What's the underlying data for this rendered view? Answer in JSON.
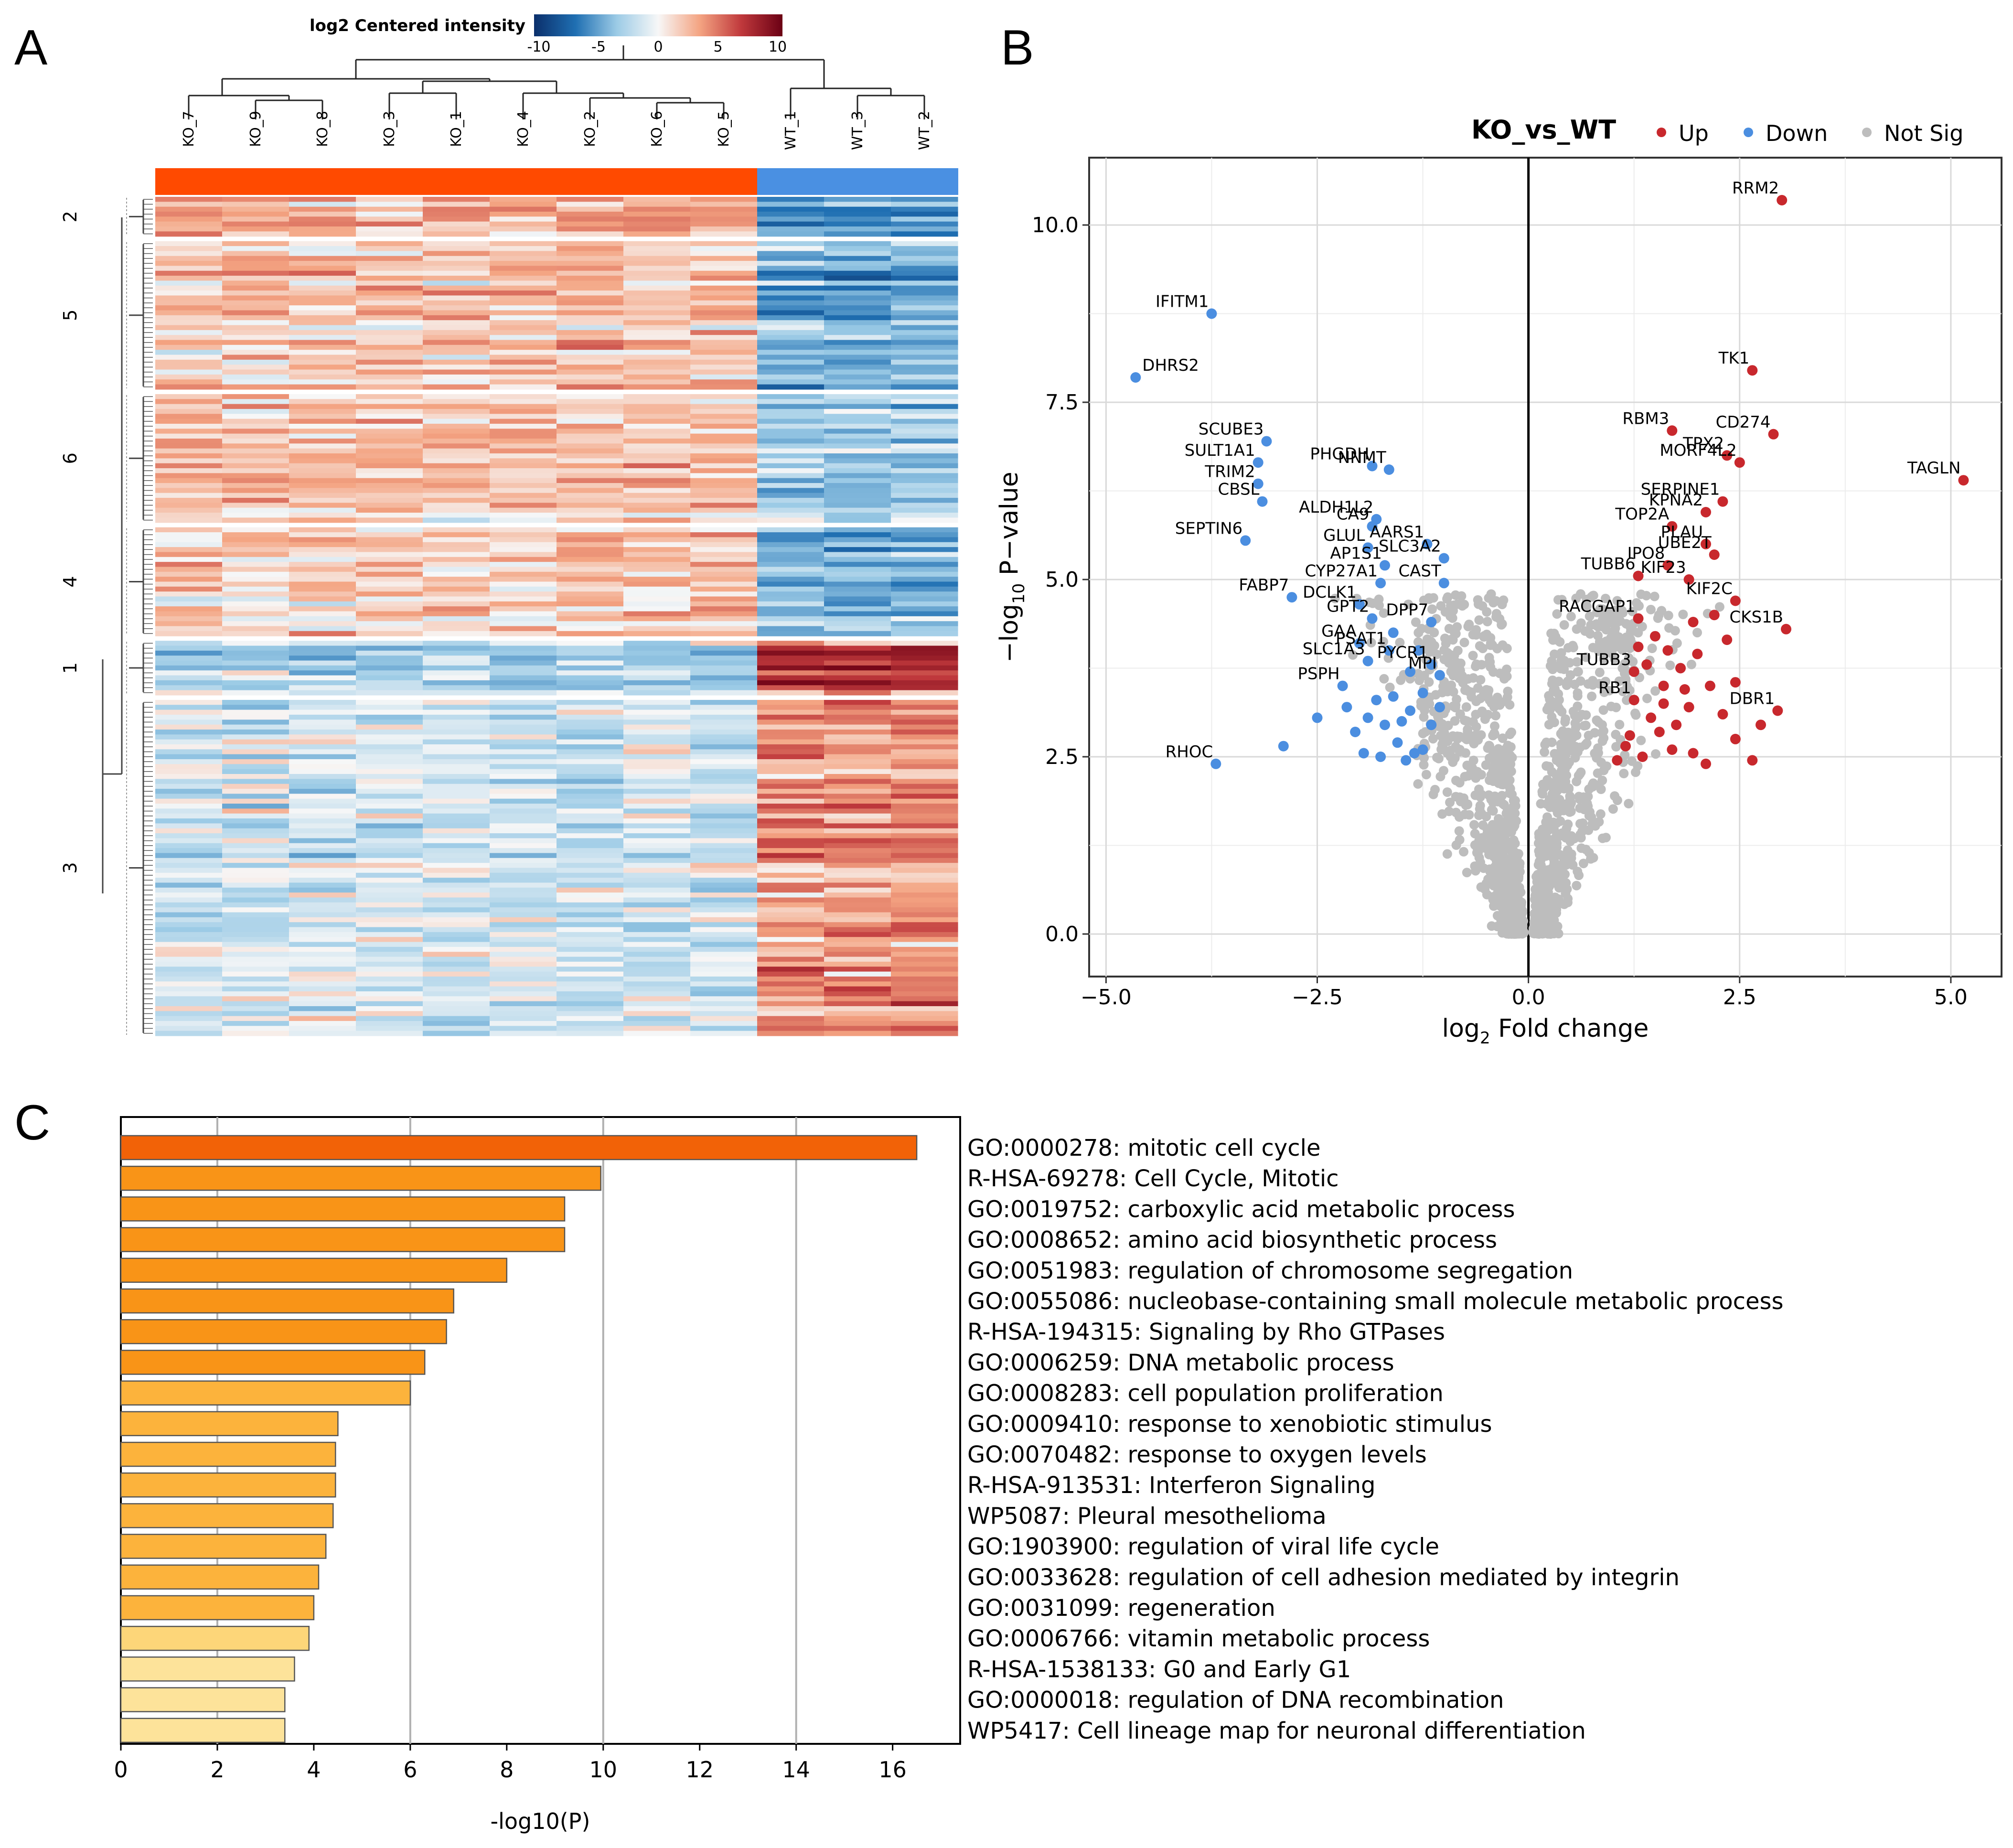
{
  "panels": {
    "a": "A",
    "b": "B",
    "c": "C"
  },
  "heatmap": {
    "colorbar": {
      "title": "log2 Centered intensity",
      "ticks": [
        "-10",
        "-5",
        "0",
        "5",
        "10"
      ],
      "colors": [
        "#0b2f6b",
        "#1f6fb2",
        "#9ccbe6",
        "#f7f7f7",
        "#f4a482",
        "#c0393c",
        "#6b0014"
      ]
    },
    "samples": [
      "KO_7",
      "KO_9",
      "KO_8",
      "KO_3",
      "KO_1",
      "KO_4",
      "KO_2",
      "KO_6",
      "KO_5",
      "WT_1",
      "WT_3",
      "WT_2"
    ],
    "group_colors": {
      "KO": "#ff4a00",
      "WT": "#4a90e2"
    },
    "clusters": [
      {
        "label": "2",
        "rows": 8,
        "ko": 2.2,
        "wt": -4.5
      },
      {
        "label": "5",
        "rows": 30,
        "ko": 1.6,
        "wt": -3.8
      },
      {
        "label": "6",
        "rows": 26,
        "ko": 1.4,
        "wt": -2.3
      },
      {
        "label": "4",
        "rows": 22,
        "ko": 1.2,
        "wt": -3.2
      },
      {
        "label": "1",
        "rows": 11,
        "ko": -1.8,
        "wt": 5.8
      },
      {
        "label": "3",
        "rows": 68,
        "ko": -1.0,
        "wt": 3.2
      }
    ]
  },
  "volcano": {
    "title": "KO_vs_WT",
    "legend": [
      {
        "label": "Up",
        "color": "#c8282d"
      },
      {
        "label": "Down",
        "color": "#4b8ee0"
      },
      {
        "label": "Not Sig",
        "color": "#bdbdbd"
      }
    ],
    "xlabel_main": "log",
    "xlabel_sub": "2",
    "xlabel_tail": " Fold change",
    "ylabel_main": "−log",
    "ylabel_sub": "10",
    "ylabel_tail": " P−value"
  },
  "chart_data": [
    {
      "type": "scatter",
      "title": "KO_vs_WT",
      "xlabel": "log2 Fold change",
      "ylabel": "-log10 P-value",
      "xlim": [
        -5.2,
        5.6
      ],
      "ylim": [
        -0.6,
        10.95
      ],
      "xticks": [
        -5.0,
        -2.5,
        0.0,
        2.5,
        5.0
      ],
      "yticks": [
        0.0,
        2.5,
        5.0,
        7.5,
        10.0
      ],
      "tick_labels_x": [
        "−5.0",
        "−2.5",
        "0.0",
        "2.5",
        "5.0"
      ],
      "tick_labels_y": [
        "0.0",
        "2.5",
        "5.0",
        "7.5",
        "10.0"
      ],
      "series": [
        {
          "name": "Up",
          "color": "#c8282d",
          "points": [
            {
              "label": "RRM2",
              "x": 3.0,
              "y": 10.35
            },
            {
              "label": "TK1",
              "x": 2.65,
              "y": 7.95
            },
            {
              "label": "RBM3",
              "x": 1.7,
              "y": 7.1
            },
            {
              "label": "CD274",
              "x": 2.9,
              "y": 7.05
            },
            {
              "label": "TPX2",
              "x": 2.35,
              "y": 6.75
            },
            {
              "label": "MORF4L2",
              "x": 2.5,
              "y": 6.65
            },
            {
              "label": "TAGLN",
              "x": 5.15,
              "y": 6.4
            },
            {
              "label": "SERPINE1",
              "x": 2.3,
              "y": 6.1
            },
            {
              "label": "KPNA2",
              "x": 2.1,
              "y": 5.95
            },
            {
              "label": "TOP2A",
              "x": 1.7,
              "y": 5.75
            },
            {
              "label": "PLAU",
              "x": 2.1,
              "y": 5.5
            },
            {
              "label": "IPO8",
              "x": 1.65,
              "y": 5.2
            },
            {
              "label": "UBE2T",
              "x": 2.2,
              "y": 5.35
            },
            {
              "label": "TUBB6",
              "x": 1.3,
              "y": 5.05
            },
            {
              "label": "KIF23",
              "x": 1.9,
              "y": 5.0
            },
            {
              "label": "RACGAP1",
              "x": 1.3,
              "y": 4.45
            },
            {
              "label": "KIF2C",
              "x": 2.45,
              "y": 4.7
            },
            {
              "label": "CKS1B",
              "x": 3.05,
              "y": 4.3
            },
            {
              "label": "TUBB3",
              "x": 1.25,
              "y": 3.7
            },
            {
              "label": "DBR1",
              "x": 2.95,
              "y": 3.15
            },
            {
              "label": "RB1",
              "x": 1.25,
              "y": 3.3
            },
            {
              "label": "",
              "x": 2.45,
              "y": 3.55
            },
            {
              "label": "",
              "x": 2.35,
              "y": 4.15
            },
            {
              "label": "",
              "x": 2.75,
              "y": 2.95
            },
            {
              "label": "",
              "x": 2.45,
              "y": 2.75
            },
            {
              "label": "",
              "x": 2.65,
              "y": 2.45
            },
            {
              "label": "",
              "x": 2.0,
              "y": 3.95
            },
            {
              "label": "",
              "x": 1.8,
              "y": 3.75
            },
            {
              "label": "",
              "x": 1.6,
              "y": 3.5
            },
            {
              "label": "",
              "x": 1.45,
              "y": 3.05
            },
            {
              "label": "",
              "x": 1.9,
              "y": 3.2
            },
            {
              "label": "",
              "x": 2.15,
              "y": 3.5
            },
            {
              "label": "",
              "x": 1.55,
              "y": 2.85
            },
            {
              "label": "",
              "x": 1.7,
              "y": 2.6
            },
            {
              "label": "",
              "x": 1.95,
              "y": 2.55
            },
            {
              "label": "",
              "x": 1.35,
              "y": 2.5
            },
            {
              "label": "",
              "x": 1.15,
              "y": 2.65
            },
            {
              "label": "",
              "x": 1.05,
              "y": 2.45
            },
            {
              "label": "",
              "x": 2.1,
              "y": 2.4
            },
            {
              "label": "",
              "x": 1.75,
              "y": 2.95
            },
            {
              "label": "",
              "x": 1.4,
              "y": 3.8
            },
            {
              "label": "",
              "x": 1.5,
              "y": 4.2
            },
            {
              "label": "",
              "x": 1.95,
              "y": 4.4
            },
            {
              "label": "",
              "x": 2.2,
              "y": 4.5
            },
            {
              "label": "",
              "x": 1.65,
              "y": 4.0
            },
            {
              "label": "",
              "x": 1.3,
              "y": 4.05
            },
            {
              "label": "",
              "x": 1.85,
              "y": 3.45
            },
            {
              "label": "",
              "x": 2.3,
              "y": 3.1
            },
            {
              "label": "",
              "x": 1.2,
              "y": 2.8
            },
            {
              "label": "",
              "x": 1.6,
              "y": 3.25
            }
          ]
        },
        {
          "name": "Down",
          "color": "#4b8ee0",
          "points": [
            {
              "label": "IFITM1",
              "x": -3.75,
              "y": 8.75
            },
            {
              "label": "DHRS2",
              "x": -4.65,
              "y": 7.85
            },
            {
              "label": "SCUBE3",
              "x": -3.1,
              "y": 6.95
            },
            {
              "label": "SULT1A1",
              "x": -3.2,
              "y": 6.65
            },
            {
              "label": "PHGDH",
              "x": -1.85,
              "y": 6.6
            },
            {
              "label": "NNMT",
              "x": -1.65,
              "y": 6.55
            },
            {
              "label": "TRIM2",
              "x": -3.2,
              "y": 6.35
            },
            {
              "label": "CBSL",
              "x": -3.15,
              "y": 6.1
            },
            {
              "label": "ALDH1L2",
              "x": -1.8,
              "y": 5.85
            },
            {
              "label": "SEPTIN6",
              "x": -3.35,
              "y": 5.55
            },
            {
              "label": "CA9",
              "x": -1.85,
              "y": 5.75
            },
            {
              "label": "AARS1",
              "x": -1.2,
              "y": 5.5
            },
            {
              "label": "GLUL",
              "x": -1.9,
              "y": 5.45
            },
            {
              "label": "SLC3A2",
              "x": -1.0,
              "y": 5.3
            },
            {
              "label": "AP1S1",
              "x": -1.7,
              "y": 5.2
            },
            {
              "label": "CAST",
              "x": -1.0,
              "y": 4.95
            },
            {
              "label": "CYP27A1",
              "x": -1.75,
              "y": 4.95
            },
            {
              "label": "FABP7",
              "x": -2.8,
              "y": 4.75
            },
            {
              "label": "DCLK1",
              "x": -2.0,
              "y": 4.65
            },
            {
              "label": "GPT2",
              "x": -1.85,
              "y": 4.45
            },
            {
              "label": "DPP7",
              "x": -1.15,
              "y": 4.4
            },
            {
              "label": "GAA",
              "x": -2.0,
              "y": 4.1
            },
            {
              "label": "PSAT1",
              "x": -1.65,
              "y": 4.0
            },
            {
              "label": "SLC1A3",
              "x": -1.9,
              "y": 3.85
            },
            {
              "label": "PYCR1",
              "x": -1.15,
              "y": 3.8
            },
            {
              "label": "PSPH",
              "x": -2.2,
              "y": 3.5
            },
            {
              "label": "MPI",
              "x": -1.05,
              "y": 3.65
            },
            {
              "label": "RHOC",
              "x": -3.7,
              "y": 2.4
            },
            {
              "label": "",
              "x": -2.9,
              "y": 2.65
            },
            {
              "label": "",
              "x": -2.5,
              "y": 3.05
            },
            {
              "label": "",
              "x": -2.05,
              "y": 2.85
            },
            {
              "label": "",
              "x": -1.8,
              "y": 3.3
            },
            {
              "label": "",
              "x": -1.6,
              "y": 3.35
            },
            {
              "label": "",
              "x": -1.4,
              "y": 3.15
            },
            {
              "label": "",
              "x": -1.25,
              "y": 3.4
            },
            {
              "label": "",
              "x": -1.7,
              "y": 2.95
            },
            {
              "label": "",
              "x": -1.55,
              "y": 2.7
            },
            {
              "label": "",
              "x": -1.35,
              "y": 2.55
            },
            {
              "label": "",
              "x": -1.15,
              "y": 2.95
            },
            {
              "label": "",
              "x": -1.05,
              "y": 3.2
            },
            {
              "label": "",
              "x": -1.95,
              "y": 2.55
            },
            {
              "label": "",
              "x": -1.75,
              "y": 2.5
            },
            {
              "label": "",
              "x": -1.45,
              "y": 2.45
            },
            {
              "label": "",
              "x": -1.25,
              "y": 2.6
            },
            {
              "label": "",
              "x": -1.6,
              "y": 4.25
            },
            {
              "label": "",
              "x": -1.4,
              "y": 3.7
            },
            {
              "label": "",
              "x": -1.3,
              "y": 4.0
            },
            {
              "label": "",
              "x": -1.9,
              "y": 3.05
            },
            {
              "label": "",
              "x": -2.15,
              "y": 3.2
            },
            {
              "label": "",
              "x": -1.5,
              "y": 3.0
            }
          ]
        },
        {
          "name": "Not Sig",
          "color": "#bdbdbd",
          "generated": true,
          "points": []
        }
      ]
    },
    {
      "type": "bar",
      "orientation": "horizontal",
      "xlabel": "-log10(P)",
      "xlim": [
        0,
        17.4
      ],
      "xticks": [
        0,
        2,
        4,
        6,
        8,
        10,
        12,
        14,
        16
      ],
      "categories": [
        "GO:0000278: mitotic cell cycle",
        "R-HSA-69278: Cell Cycle, Mitotic",
        "GO:0019752: carboxylic acid metabolic process",
        "GO:0008652: amino acid biosynthetic process",
        "GO:0051983: regulation of chromosome segregation",
        "GO:0055086: nucleobase-containing small molecule metabolic process",
        "R-HSA-194315: Signaling by Rho GTPases",
        "GO:0006259: DNA metabolic process",
        "GO:0008283: cell population proliferation",
        "GO:0009410: response to xenobiotic stimulus",
        "GO:0070482: response to oxygen levels",
        "R-HSA-913531: Interferon Signaling",
        "WP5087: Pleural mesothelioma",
        "GO:1903900: regulation of viral life cycle",
        "GO:0033628: regulation of cell adhesion mediated by integrin",
        "GO:0031099: regeneration",
        "GO:0006766: vitamin metabolic process",
        "R-HSA-1538133: G0 and Early G1",
        "GO:0000018: regulation of DNA recombination",
        "WP5417: Cell lineage map for neuronal differentiation"
      ],
      "values": [
        16.5,
        9.95,
        9.2,
        9.2,
        8.0,
        6.9,
        6.75,
        6.3,
        6.0,
        4.5,
        4.45,
        4.45,
        4.4,
        4.25,
        4.1,
        4.0,
        3.9,
        3.6,
        3.4,
        3.4
      ],
      "colors": [
        "#f26207",
        "#f99417",
        "#f99417",
        "#f99417",
        "#f99417",
        "#f99417",
        "#f99417",
        "#f99417",
        "#fcb33c",
        "#fcb33c",
        "#fcb33c",
        "#fcb33c",
        "#fcb33c",
        "#fcb33c",
        "#fcb33c",
        "#fcb33c",
        "#fdd679",
        "#fde39a",
        "#fde39a",
        "#fde39a"
      ]
    }
  ]
}
